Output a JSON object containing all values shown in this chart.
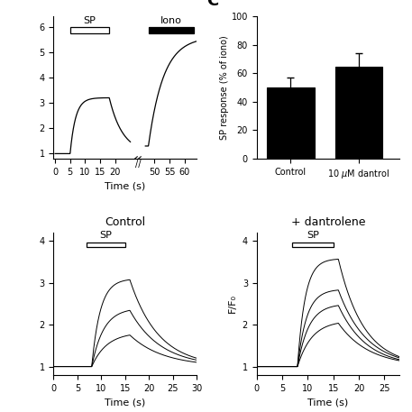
{
  "top_right": {
    "title": "C",
    "ylabel": "SP response (% of iono)",
    "ylim": [
      0,
      100
    ],
    "yticks": [
      0,
      20,
      40,
      60,
      80,
      100
    ],
    "categories": [
      "Control",
      "10 μM dantrol"
    ],
    "values": [
      50,
      65
    ],
    "errors": [
      7,
      9
    ],
    "bar_color": "black"
  },
  "bottom_left": {
    "title": "Control",
    "xlabel": "Time (s)",
    "xlim": [
      0,
      30
    ],
    "ylim": [
      0.8,
      4.2
    ],
    "yticks": [
      1,
      2,
      3,
      4
    ],
    "sp_bar_start": 7,
    "sp_bar_end": 15,
    "peaks": [
      3.1,
      2.4,
      1.82
    ],
    "sp_start": 8.0,
    "rise_taus": [
      1.8,
      2.5,
      3.2
    ],
    "decay_taus": [
      6.0,
      6.5,
      7.0
    ]
  },
  "bottom_right": {
    "title": "+ dantrolene",
    "xlabel": "Time (s)",
    "ylabel": "F/F₀",
    "xlim": [
      0,
      28
    ],
    "ylim": [
      0.8,
      4.2
    ],
    "yticks": [
      1,
      2,
      3,
      4
    ],
    "sp_bar_start": 7,
    "sp_bar_end": 15,
    "peaks": [
      3.58,
      2.85,
      2.5,
      2.1
    ],
    "sp_start": 8.0,
    "rise_taus": [
      1.5,
      1.8,
      2.2,
      2.8
    ],
    "decay_taus": [
      5.0,
      5.5,
      5.5,
      6.0
    ]
  }
}
